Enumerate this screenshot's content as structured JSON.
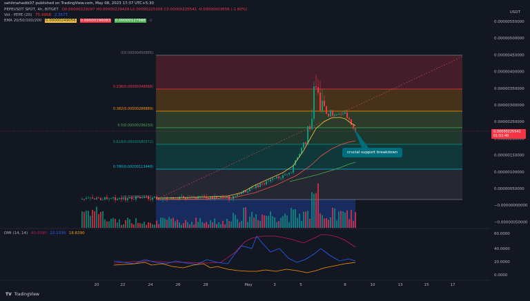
{
  "header": {
    "publisher": "sahilmahadik07 published on TradingView.com, May 08, 2023 17:37 UTC+5:30",
    "symbol": "PEPEUSDT SPOT, 4h, BITGET",
    "ohlc": "O0.00000229197 H0.00000229429 L0.00000225309 C0.00000225541 -0.00000003656 (-1.60%)"
  },
  "legend": {
    "vol_label": "Vol - PEPE (20)",
    "vol_v1": "75.995B",
    "vol_v2": "2.357T",
    "ema_label": "EMA 20/50/100/200",
    "ema_v1": "0.00000249056",
    "ema_v2": "0.00000196083",
    "ema_v3": "0.00000127988",
    "ema_v4": "∅"
  },
  "currency": "USDT",
  "y_axis": [
    "0.00000550000",
    "0.00000500000",
    "0.00000450000",
    "0.00000400000",
    "0.00000350000",
    "0.00000300000",
    "0.00000250000",
    "0.00000200000",
    "0.00000150000",
    "0.00000100000",
    "0.00000050000",
    "−0.00000000000",
    "−0.00000050000"
  ],
  "price_tag": {
    "price": "0.00000225541",
    "countdown": "01:51:40"
  },
  "fib_levels": [
    {
      "label": "0(0.00000450885)",
      "color": "#787b86"
    },
    {
      "label": "0.236(0.00000349568)",
      "color": "#f23645"
    },
    {
      "label": "0.382(0.00000286889)",
      "color": "#ff9800"
    },
    {
      "label": "0.5(0.00000236230)",
      "color": "#4caf50"
    },
    {
      "label": "0.618(0.00000185572)",
      "color": "#089981"
    },
    {
      "label": "0.786(0.00000113448)",
      "color": "#00bcd4"
    },
    {
      "label": "1(0.00000021581)",
      "color": "#787b86"
    }
  ],
  "annotation": "crucial support breakdown",
  "dmi": {
    "label": "DMI (14, 14)",
    "v1": "40.0390",
    "v2": "22.1330",
    "v3": "18.8390",
    "y_axis": [
      "60.0000",
      "40.0000",
      "20.0000",
      "0.0000"
    ]
  },
  "x_axis": [
    "20",
    "22",
    "24",
    "26",
    "28",
    "May",
    "3",
    "5",
    "8",
    "10",
    "13",
    "15",
    "17"
  ],
  "footer": {
    "brand": "TradingView"
  },
  "colors": {
    "up": "#089981",
    "down": "#f23645",
    "bg": "#131722"
  }
}
